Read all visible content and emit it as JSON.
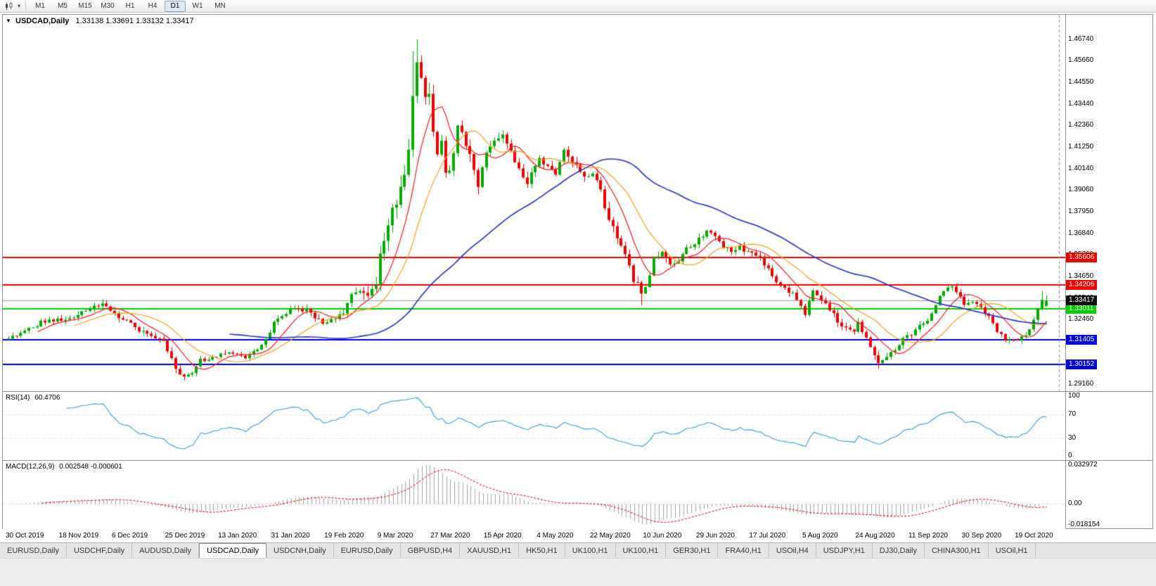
{
  "toolbar": {
    "timeframes": [
      "M1",
      "M5",
      "M15",
      "M30",
      "H1",
      "H4",
      "D1",
      "W1",
      "MN"
    ],
    "active_timeframe": "D1",
    "dropdown_icon": "▾"
  },
  "chart": {
    "collapse_icon": "▼",
    "title": "USDCAD,Daily",
    "ohlc_text": "1.33138 1.33691 1.33132 1.33417"
  },
  "indicators": {
    "rsi_label": "RSI(14)",
    "rsi_value": "60.4706",
    "macd_label": "MACD(12,26,9)",
    "macd_values": "0.002548 -0.000601"
  },
  "chart_data": {
    "type": "candlestick",
    "symbol": "USDCAD",
    "timeframe": "Daily",
    "last_candle": {
      "open": 1.33138,
      "high": 1.33691,
      "low": 1.33132,
      "close": 1.33417
    },
    "slots": 258,
    "data_bars": 255,
    "price_axis": {
      "min": 1.288,
      "max": 1.48,
      "ticks": [
        "1.46740",
        "1.45660",
        "1.44550",
        "1.43440",
        "1.42360",
        "1.41250",
        "1.40140",
        "1.39060",
        "1.37950",
        "1.36840",
        "1.35760",
        "1.34650",
        "1.33540",
        "1.32460",
        "1.31350",
        "1.30240",
        "1.29160"
      ]
    },
    "levels": [
      {
        "price": 1.35606,
        "label": "1.35606",
        "color": "#ee0000"
      },
      {
        "price": 1.34206,
        "label": "1.34206",
        "color": "#ee0000"
      },
      {
        "price": 1.33011,
        "label": "1.33011",
        "color": "#00cc00"
      },
      {
        "price": 1.31405,
        "label": "1.31405",
        "color": "#0000dd"
      },
      {
        "price": 1.30152,
        "label": "1.30152",
        "color": "#0000dd"
      }
    ],
    "current_price": {
      "price": 1.33417,
      "label": "1.33417",
      "badge_color": "#111111",
      "line_color": "#9a9a9a"
    },
    "candle_colors": {
      "up": "#00a800",
      "down": "#ee0000"
    },
    "moving_averages": [
      {
        "period": 8,
        "color": "#ff1a1a",
        "width": 1.2
      },
      {
        "period": 17,
        "color": "#f2a122",
        "width": 1.2
      },
      {
        "period": 55,
        "color": "#2430c8",
        "width": 1.6
      }
    ],
    "anchors": [
      [
        0,
        1.3155
      ],
      [
        4,
        1.3185
      ],
      [
        8,
        1.323
      ],
      [
        13,
        1.3245
      ],
      [
        17,
        1.3272
      ],
      [
        20,
        1.3305
      ],
      [
        23,
        1.3318
      ],
      [
        26,
        1.3268
      ],
      [
        29,
        1.3242
      ],
      [
        32,
        1.3185
      ],
      [
        35,
        1.3168
      ],
      [
        38,
        1.3125
      ],
      [
        41,
        1.2992
      ],
      [
        43,
        1.2963
      ],
      [
        45,
        1.2976
      ],
      [
        47,
        1.3036
      ],
      [
        50,
        1.3056
      ],
      [
        52,
        1.3062
      ],
      [
        55,
        1.3076
      ],
      [
        58,
        1.3052
      ],
      [
        61,
        1.3092
      ],
      [
        63,
        1.3142
      ],
      [
        65,
        1.3232
      ],
      [
        68,
        1.3282
      ],
      [
        70,
        1.3296
      ],
      [
        73,
        1.329
      ],
      [
        75,
        1.3256
      ],
      [
        78,
        1.3226
      ],
      [
        80,
        1.3256
      ],
      [
        82,
        1.3286
      ],
      [
        84,
        1.3382
      ],
      [
        86,
        1.3402
      ],
      [
        88,
        1.3376
      ],
      [
        90,
        1.3422
      ],
      [
        91,
        1.3562
      ],
      [
        93,
        1.3732
      ],
      [
        95,
        1.3862
      ],
      [
        97,
        1.3992
      ],
      [
        98,
        1.4122
      ],
      [
        99,
        1.4352
      ],
      [
        100,
        1.4562
      ],
      [
        101,
        1.4482
      ],
      [
        102,
        1.4392
      ],
      [
        103,
        1.4422
      ],
      [
        104,
        1.4182
      ],
      [
        105,
        1.4092
      ],
      [
        106,
        1.4152
      ],
      [
        107,
        1.4022
      ],
      [
        108,
        1.3992
      ],
      [
        109,
        1.4106
      ],
      [
        110,
        1.4232
      ],
      [
        111,
        1.4192
      ],
      [
        113,
        1.4082
      ],
      [
        115,
        1.3922
      ],
      [
        117,
        1.4092
      ],
      [
        119,
        1.4172
      ],
      [
        121,
        1.4202
      ],
      [
        123,
        1.4112
      ],
      [
        125,
        1.4012
      ],
      [
        127,
        1.3952
      ],
      [
        129,
        1.4012
      ],
      [
        130,
        1.4072
      ],
      [
        132,
        1.4022
      ],
      [
        134,
        1.3972
      ],
      [
        136,
        1.4112
      ],
      [
        138,
        1.4062
      ],
      [
        140,
        1.3992
      ],
      [
        142,
        1.3962
      ],
      [
        143,
        1.3992
      ],
      [
        145,
        1.3902
      ],
      [
        147,
        1.3752
      ],
      [
        149,
        1.3672
      ],
      [
        151,
        1.3562
      ],
      [
        153,
        1.3452
      ],
      [
        155,
        1.3392
      ],
      [
        156,
        1.3422
      ],
      [
        157,
        1.3472
      ],
      [
        158,
        1.3562
      ],
      [
        160,
        1.3582
      ],
      [
        162,
        1.3532
      ],
      [
        164,
        1.3552
      ],
      [
        166,
        1.3612
      ],
      [
        169,
        1.3656
      ],
      [
        171,
        1.3692
      ],
      [
        173,
        1.3662
      ],
      [
        175,
        1.3622
      ],
      [
        177,
        1.3582
      ],
      [
        179,
        1.3612
      ],
      [
        182,
        1.3576
      ],
      [
        184,
        1.3562
      ],
      [
        186,
        1.3502
      ],
      [
        188,
        1.3432
      ],
      [
        190,
        1.3396
      ],
      [
        192,
        1.3376
      ],
      [
        194,
        1.3312
      ],
      [
        195,
        1.3272
      ],
      [
        197,
        1.3392
      ],
      [
        199,
        1.3352
      ],
      [
        201,
        1.3302
      ],
      [
        203,
        1.3232
      ],
      [
        205,
        1.3192
      ],
      [
        207,
        1.3176
      ],
      [
        208,
        1.3222
      ],
      [
        210,
        1.3152
      ],
      [
        212,
        1.3062
      ],
      [
        213,
        1.3012
      ],
      [
        215,
        1.3052
      ],
      [
        217,
        1.3092
      ],
      [
        219,
        1.3152
      ],
      [
        221,
        1.3176
      ],
      [
        223,
        1.3212
      ],
      [
        225,
        1.3232
      ],
      [
        227,
        1.3322
      ],
      [
        229,
        1.3396
      ],
      [
        231,
        1.3406
      ],
      [
        233,
        1.3352
      ],
      [
        234,
        1.3322
      ],
      [
        236,
        1.3332
      ],
      [
        238,
        1.3306
      ],
      [
        240,
        1.3256
      ],
      [
        242,
        1.3186
      ],
      [
        244,
        1.3142
      ],
      [
        246,
        1.3136
      ],
      [
        248,
        1.3152
      ],
      [
        250,
        1.3186
      ],
      [
        251,
        1.3242
      ],
      [
        252,
        1.3306
      ],
      [
        253,
        1.3342
      ],
      [
        254,
        1.33417
      ]
    ],
    "volatility": [
      [
        0,
        0.0036
      ],
      [
        40,
        0.0046
      ],
      [
        60,
        0.0034
      ],
      [
        84,
        0.005
      ],
      [
        92,
        0.0105
      ],
      [
        100,
        0.0135
      ],
      [
        106,
        0.0108
      ],
      [
        112,
        0.0085
      ],
      [
        120,
        0.0068
      ],
      [
        135,
        0.0058
      ],
      [
        148,
        0.0072
      ],
      [
        160,
        0.0055
      ],
      [
        175,
        0.0045
      ],
      [
        195,
        0.0042
      ],
      [
        210,
        0.005
      ],
      [
        225,
        0.004
      ],
      [
        254,
        0.0038
      ]
    ],
    "spikes": [
      {
        "bar": 99,
        "high": 1.4615
      },
      {
        "bar": 100,
        "high": 1.4674
      },
      {
        "bar": 155,
        "low": 1.3318
      },
      {
        "bar": 213,
        "low": 1.2994
      },
      {
        "bar": 253,
        "high": 1.3392
      }
    ],
    "x_labels": [
      {
        "bar": 0,
        "text": "30 Oct 2019"
      },
      {
        "bar": 13,
        "text": "18 Nov 2019"
      },
      {
        "bar": 26,
        "text": "6 Dec 2019"
      },
      {
        "bar": 39,
        "text": "25 Dec 2019"
      },
      {
        "bar": 52,
        "text": "13 Jan 2020"
      },
      {
        "bar": 65,
        "text": "31 Jan 2020"
      },
      {
        "bar": 78,
        "text": "19 Feb 2020"
      },
      {
        "bar": 91,
        "text": "9 Mar 2020"
      },
      {
        "bar": 104,
        "text": "27 Mar 2020"
      },
      {
        "bar": 117,
        "text": "15 Apr 2020"
      },
      {
        "bar": 130,
        "text": "4 May 2020"
      },
      {
        "bar": 143,
        "text": "22 May 2020"
      },
      {
        "bar": 156,
        "text": "10 Jun 2020"
      },
      {
        "bar": 169,
        "text": "29 Jun 2020"
      },
      {
        "bar": 182,
        "text": "17 Jul 2020"
      },
      {
        "bar": 195,
        "text": "5 Aug 2020"
      },
      {
        "bar": 208,
        "text": "24 Aug 2020"
      },
      {
        "bar": 221,
        "text": "11 Sep 2020"
      },
      {
        "bar": 234,
        "text": "30 Sep 2020"
      },
      {
        "bar": 247,
        "text": "19 Oct 2020"
      }
    ],
    "rsi": {
      "period": 14,
      "line_color": "#3e9bd8",
      "scale_labels": [
        "100",
        "70",
        "30",
        "0"
      ],
      "level_lines": [
        70,
        30
      ]
    },
    "macd": {
      "fast": 12,
      "slow": 26,
      "signal": 9,
      "hist_color": "#a2a2a2",
      "signal_color": "#e00000",
      "scale_max_label": "0.032972",
      "scale_zero_label": "0.00",
      "scale_min_label": "-0.018154"
    }
  },
  "bottom_tabs": {
    "active_index": 3,
    "tabs": [
      "EURUSD,Daily",
      "USDCHF,Daily",
      "AUDUSD,Daily",
      "USDCAD,Daily",
      "USDCNH,Daily",
      "EURUSD,Daily",
      "GBPUSD,H4",
      "XAUUSD,H1",
      "HK50,H1",
      "UK100,H1",
      "UK100,H1",
      "GER30,H1",
      "FRA40,H1",
      "USOil,H4",
      "USDJPY,H1",
      "DJ30,Daily",
      "CHINA300,H1",
      "USOil,H1"
    ]
  }
}
